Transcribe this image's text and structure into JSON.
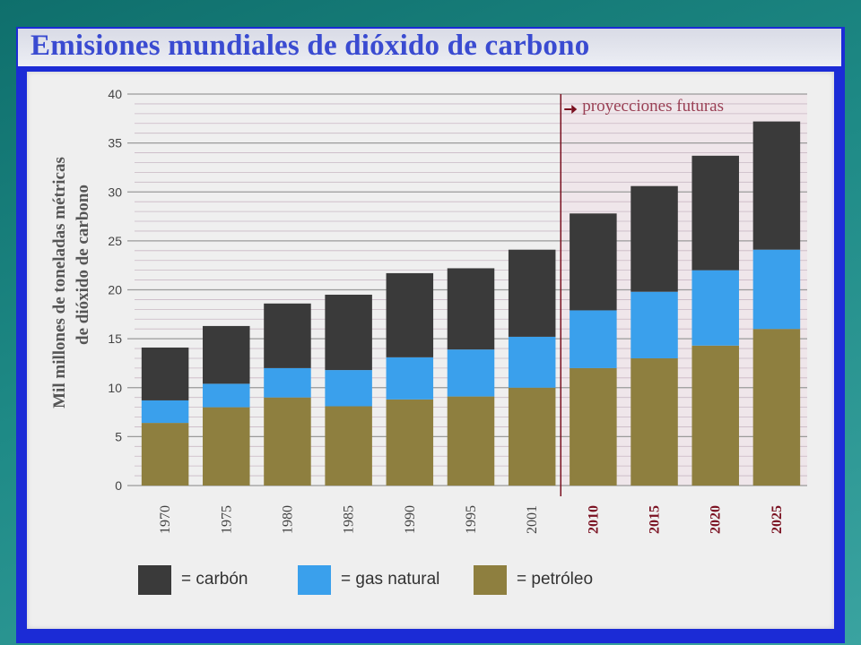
{
  "title": "Emisiones mundiales de dióxido de carbono",
  "colors": {
    "carbon": "#3a3a3a",
    "gas_natural": "#3aa0ec",
    "petroleo": "#8e7f3f",
    "projection_line": "#7a1020",
    "projection_text": "#9a4055"
  },
  "chart_data": {
    "type": "bar",
    "stacked": true,
    "title": "Emisiones mundiales de dióxido de carbono",
    "xlabel": "",
    "ylabel": "Mil millones de toneladas métricas de dióxido de carbono",
    "ylabel_lines": [
      "Mil millones de toneladas métricas",
      "de dióxido de carbono"
    ],
    "ylim": [
      0,
      40
    ],
    "yticks": [
      0,
      5,
      10,
      15,
      20,
      25,
      30,
      35,
      40
    ],
    "grid": true,
    "legend_placement": "bottom",
    "categories": [
      "1970",
      "1975",
      "1980",
      "1985",
      "1990",
      "1995",
      "2001",
      "2010",
      "2015",
      "2020",
      "2025"
    ],
    "projected_from": "2010",
    "annotation": "proyecciones futuras",
    "series": [
      {
        "name": "petróleo",
        "values": [
          6.4,
          8.0,
          9.0,
          8.1,
          8.8,
          9.1,
          10.0,
          12.0,
          13.0,
          14.3,
          16.0
        ]
      },
      {
        "name": "gas natural",
        "values": [
          2.3,
          2.4,
          3.0,
          3.7,
          4.3,
          4.8,
          5.2,
          5.9,
          6.8,
          7.7,
          8.1
        ]
      },
      {
        "name": "carbón",
        "values": [
          5.4,
          5.9,
          6.6,
          7.7,
          8.6,
          8.3,
          8.9,
          9.9,
          10.8,
          11.7,
          13.1
        ]
      }
    ]
  },
  "legend": {
    "carbon": "= carbón",
    "gas_natural": "= gas natural",
    "petroleo": "= petróleo"
  }
}
